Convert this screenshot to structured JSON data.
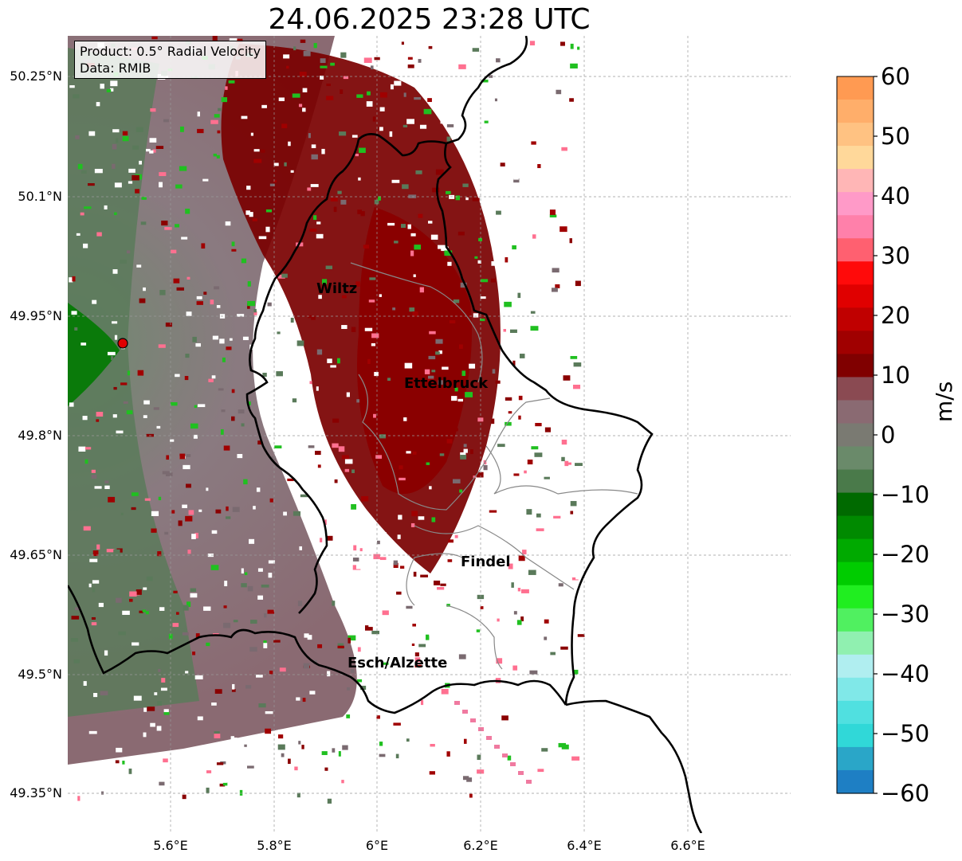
{
  "title": "24.06.2025 23:28 UTC",
  "info": {
    "product": "Product: 0.5° Radial Velocity",
    "data": "Data: RMIB"
  },
  "y_ticks": [
    "50.25°N",
    "50.1°N",
    "49.95°N",
    "49.8°N",
    "49.65°N",
    "49.5°N",
    "49.35°N"
  ],
  "x_ticks": [
    "5.6°E",
    "5.8°E",
    "6°E",
    "6.2°E",
    "6.4°E",
    "6.6°E"
  ],
  "cities": [
    {
      "name": "Wiltz",
      "lon": 5.94,
      "lat": 49.966
    },
    {
      "name": "Ettelbruck",
      "lon": 6.1,
      "lat": 49.847
    },
    {
      "name": "Findel",
      "lon": 6.21,
      "lat": 49.627
    },
    {
      "name": "Esch/Alzette",
      "lon": 5.98,
      "lat": 49.496
    }
  ],
  "radar_site": {
    "lon": 5.505,
    "lat": 49.914
  },
  "colorbar": {
    "label": "m/s",
    "ticks": [
      "60",
      "50",
      "40",
      "30",
      "20",
      "10",
      "0",
      "−10",
      "−20",
      "−30",
      "−40",
      "−50",
      "−60"
    ],
    "colors": [
      "#ff9a52",
      "#ffae6a",
      "#ffc282",
      "#ffd89a",
      "#ffb6b6",
      "#ff9ac8",
      "#ff80aa",
      "#ff6070",
      "#ff0a0a",
      "#e00000",
      "#c00000",
      "#a00000",
      "#800000",
      "#8a4a52",
      "#8a6a72",
      "#7a7a72",
      "#6a8a6a",
      "#4a7a4a",
      "#006a00",
      "#008a00",
      "#00aa00",
      "#00cc00",
      "#20ee20",
      "#50f060",
      "#90f0b0",
      "#b0eef0",
      "#80e8e8",
      "#50e0e0",
      "#30d8d8",
      "#2aa6c8",
      "#1e7fc4"
    ]
  }
}
